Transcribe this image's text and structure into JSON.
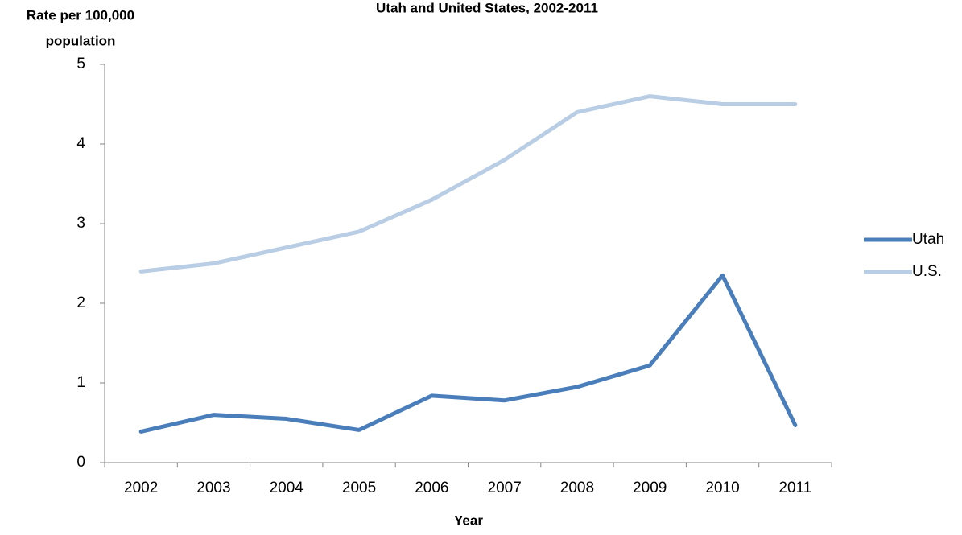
{
  "chart_data": {
    "type": "line",
    "title": "Utah and United States, 2002-2011",
    "y_label": [
      "Rate per 100,000",
      "population"
    ],
    "x_label": "Year",
    "categories": [
      "2002",
      "2003",
      "2004",
      "2005",
      "2006",
      "2007",
      "2008",
      "2009",
      "2010",
      "2011"
    ],
    "series": [
      {
        "name": "Utah",
        "color": "#4a7ebb",
        "values": [
          0.39,
          0.6,
          0.55,
          0.41,
          0.84,
          0.78,
          0.95,
          1.22,
          2.35,
          0.47
        ]
      },
      {
        "name": "U.S.",
        "color": "#b9cde5",
        "values": [
          2.4,
          2.5,
          2.7,
          2.9,
          3.3,
          3.8,
          4.4,
          4.6,
          4.5,
          4.5
        ]
      }
    ],
    "ylim": [
      0,
      5
    ],
    "yticks": [
      0,
      1,
      2,
      3,
      4,
      5
    ],
    "grid": false,
    "legend": "right"
  }
}
